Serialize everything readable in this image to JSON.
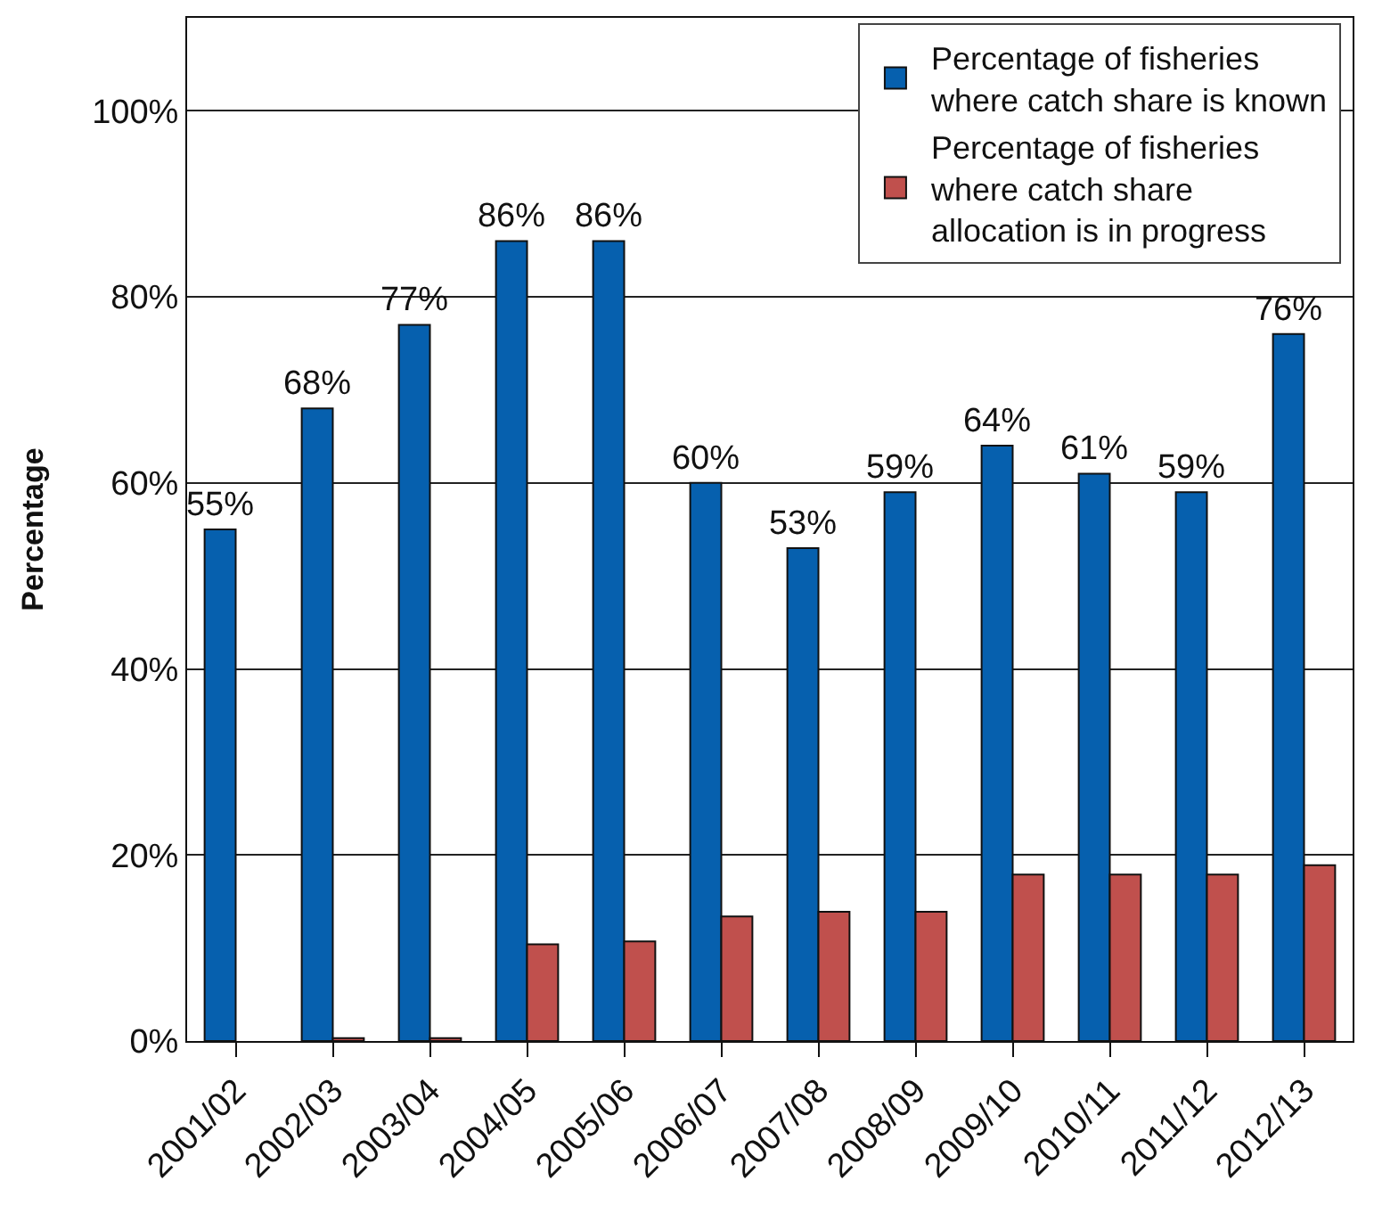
{
  "chart_data": {
    "type": "bar",
    "ylabel": "Percentage",
    "categories": [
      "2001/02",
      "2002/03",
      "2003/04",
      "2004/05",
      "2005/06",
      "2006/07",
      "2007/08",
      "2008/09",
      "2009/10",
      "2010/11",
      "2011/12",
      "2012/13"
    ],
    "series": [
      {
        "name": "Percentage of fisheries where catch share is known",
        "color": "#0660ae",
        "values": [
          55,
          68,
          77,
          86,
          86,
          60,
          53,
          59,
          64,
          61,
          59,
          76
        ],
        "value_labels": [
          "55%",
          "68%",
          "77%",
          "86%",
          "86%",
          "60%",
          "53%",
          "59%",
          "64%",
          "61%",
          "59%",
          "76%"
        ]
      },
      {
        "name": "Percentage of fisheries where catch share allocation is in progress",
        "color": "#c0504d",
        "values": [
          null,
          0.3,
          0.3,
          10.4,
          10.7,
          13.4,
          13.9,
          13.9,
          17.9,
          17.9,
          17.9,
          18.9
        ]
      }
    ],
    "ylim": [
      0,
      110
    ],
    "yticks": [
      {
        "value": 0,
        "label": "0%"
      },
      {
        "value": 20,
        "label": "20%"
      },
      {
        "value": 40,
        "label": "40%"
      },
      {
        "value": 60,
        "label": "60%"
      },
      {
        "value": 80,
        "label": "80%"
      },
      {
        "value": 100,
        "label": "100%"
      }
    ],
    "grid": "y",
    "legend": "top right"
  }
}
